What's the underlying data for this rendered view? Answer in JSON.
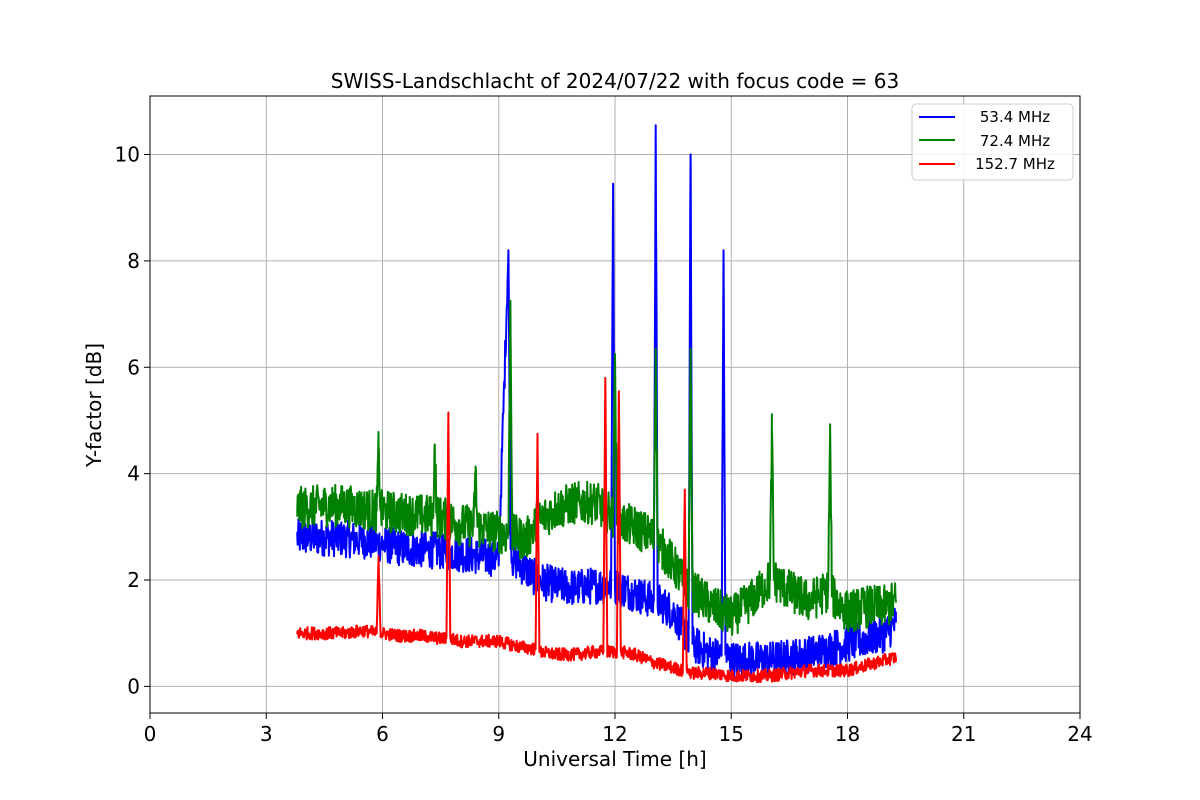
{
  "chart_data": {
    "type": "line",
    "title": "SWISS-Landschlacht of 2024/07/22 with focus code = 63",
    "xlabel": "Universal Time [h]",
    "ylabel": "Y-factor [dB]",
    "xlim": [
      0,
      24
    ],
    "ylim": [
      -0.5,
      11.1
    ],
    "xticks": [
      0,
      3,
      6,
      9,
      12,
      15,
      18,
      21,
      24
    ],
    "yticks": [
      0,
      2,
      4,
      6,
      8,
      10
    ],
    "xtick_labels": [
      "0",
      "3",
      "6",
      "9",
      "12",
      "15",
      "18",
      "21",
      "24"
    ],
    "ytick_labels": [
      "0",
      "2",
      "4",
      "6",
      "8",
      "10"
    ],
    "grid": true,
    "legend_position": "top-right",
    "series": [
      {
        "name": "53.4 MHz",
        "color": "#0000ff",
        "x": [
          3.8,
          4.5,
          5.5,
          6.5,
          7.5,
          8.5,
          9.0,
          9.25,
          9.3,
          9.35,
          9.7,
          10.0,
          10.5,
          11.0,
          11.5,
          11.9,
          11.95,
          12.0,
          12.5,
          13.0,
          13.05,
          13.1,
          13.5,
          13.9,
          13.95,
          14.0,
          14.5,
          14.75,
          14.8,
          14.85,
          15.0,
          15.5,
          16.0,
          16.5,
          17.0,
          17.5,
          18.0,
          18.5,
          19.0,
          19.25
        ],
        "y": [
          2.8,
          2.8,
          2.75,
          2.6,
          2.55,
          2.45,
          2.4,
          8.2,
          3.0,
          2.4,
          2.2,
          2.0,
          1.9,
          1.85,
          1.9,
          1.9,
          9.45,
          1.9,
          1.75,
          1.6,
          10.55,
          1.6,
          1.4,
          0.9,
          10.0,
          0.8,
          0.6,
          0.6,
          8.2,
          0.6,
          0.5,
          0.5,
          0.5,
          0.55,
          0.6,
          0.7,
          0.8,
          0.9,
          1.0,
          1.2
        ],
        "noise": 0.35
      },
      {
        "name": "72.4 MHz",
        "color": "#008000",
        "x": [
          3.8,
          4.5,
          5.0,
          5.85,
          5.9,
          5.95,
          6.5,
          7.3,
          7.35,
          7.4,
          8.0,
          8.35,
          8.4,
          8.45,
          9.0,
          9.25,
          9.3,
          9.35,
          9.7,
          10.0,
          10.5,
          11.0,
          11.5,
          11.95,
          12.0,
          12.05,
          12.5,
          13.0,
          13.05,
          13.1,
          13.5,
          13.9,
          13.95,
          14.0,
          14.5,
          15.0,
          15.5,
          16.0,
          16.05,
          16.1,
          16.5,
          17.0,
          17.5,
          17.55,
          17.6,
          18.0,
          18.5,
          19.0,
          19.25
        ],
        "y": [
          3.35,
          3.4,
          3.4,
          3.3,
          4.5,
          3.3,
          3.25,
          3.2,
          4.55,
          3.2,
          3.05,
          3.0,
          4.05,
          3.0,
          2.9,
          2.85,
          7.25,
          2.85,
          2.75,
          3.1,
          3.35,
          3.45,
          3.45,
          3.2,
          6.25,
          3.1,
          3.0,
          2.8,
          6.35,
          2.7,
          2.3,
          1.8,
          6.35,
          1.8,
          1.5,
          1.3,
          1.6,
          2.0,
          4.85,
          2.0,
          1.8,
          1.6,
          1.8,
          4.75,
          1.7,
          1.4,
          1.5,
          1.5,
          1.6
        ],
        "noise": 0.4
      },
      {
        "name": "152.7 MHz",
        "color": "#ff0000",
        "x": [
          3.8,
          4.5,
          5.0,
          5.5,
          5.85,
          5.9,
          5.95,
          6.5,
          7.0,
          7.5,
          7.65,
          7.7,
          7.75,
          8.0,
          8.5,
          9.0,
          9.5,
          9.95,
          10.0,
          10.05,
          10.5,
          11.0,
          11.5,
          11.7,
          11.75,
          11.8,
          12.05,
          12.1,
          12.15,
          12.5,
          13.0,
          13.5,
          13.75,
          13.8,
          13.85,
          14.0,
          14.5,
          15.0,
          15.5,
          16.0,
          16.5,
          17.0,
          17.5,
          18.0,
          18.5,
          19.0,
          19.25
        ],
        "y": [
          1.0,
          1.0,
          1.0,
          1.05,
          1.0,
          2.45,
          1.0,
          0.95,
          0.95,
          0.9,
          0.9,
          5.15,
          0.9,
          0.85,
          0.85,
          0.85,
          0.75,
          0.7,
          4.75,
          0.65,
          0.6,
          0.6,
          0.65,
          0.65,
          5.8,
          0.65,
          0.65,
          5.55,
          0.65,
          0.6,
          0.45,
          0.35,
          0.3,
          3.7,
          0.3,
          0.25,
          0.25,
          0.2,
          0.2,
          0.2,
          0.25,
          0.3,
          0.3,
          0.3,
          0.4,
          0.5,
          0.55
        ],
        "noise": 0.12
      }
    ]
  }
}
